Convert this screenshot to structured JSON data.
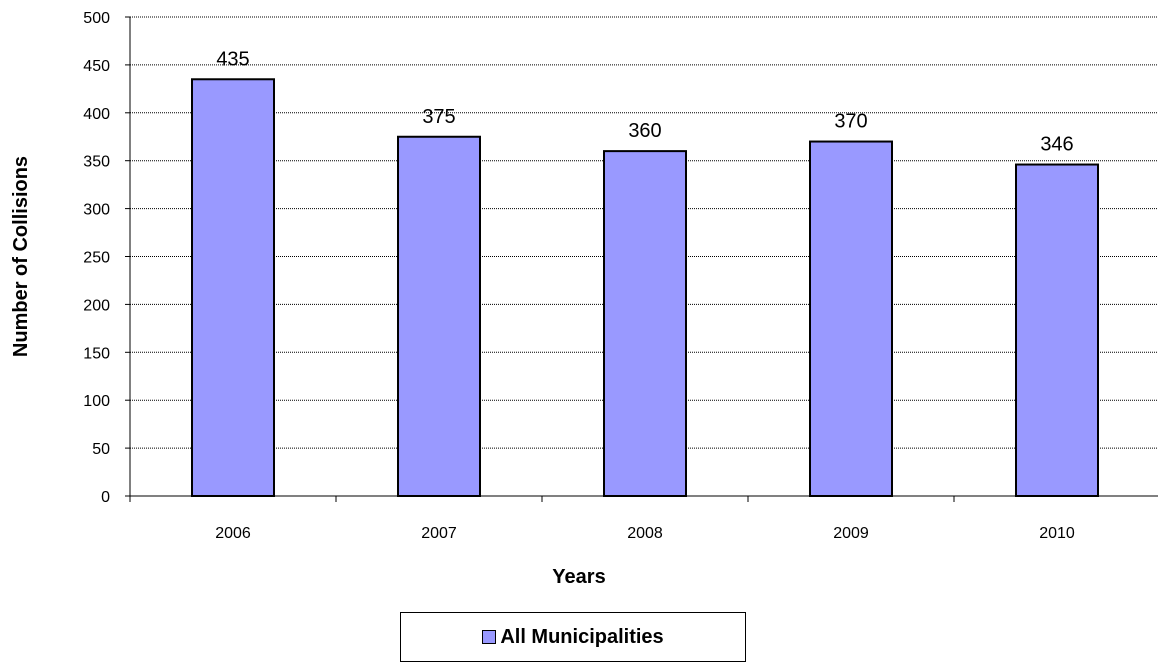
{
  "chart_data": {
    "type": "bar",
    "categories": [
      "2006",
      "2007",
      "2008",
      "2009",
      "2010"
    ],
    "series": [
      {
        "name": "All Municipalities",
        "values": [
          435,
          375,
          360,
          370,
          346
        ]
      }
    ],
    "data_labels": [
      "435",
      "375",
      "360",
      "370",
      "346"
    ],
    "xlabel": "Years",
    "ylabel": "Number of Collisions",
    "ylim": [
      0,
      500
    ],
    "yticks": [
      "0",
      "50",
      "100",
      "150",
      "200",
      "250",
      "300",
      "350",
      "400",
      "450",
      "500"
    ],
    "grid": true,
    "legend_position": "bottom",
    "bar_color": "#9999FF"
  }
}
